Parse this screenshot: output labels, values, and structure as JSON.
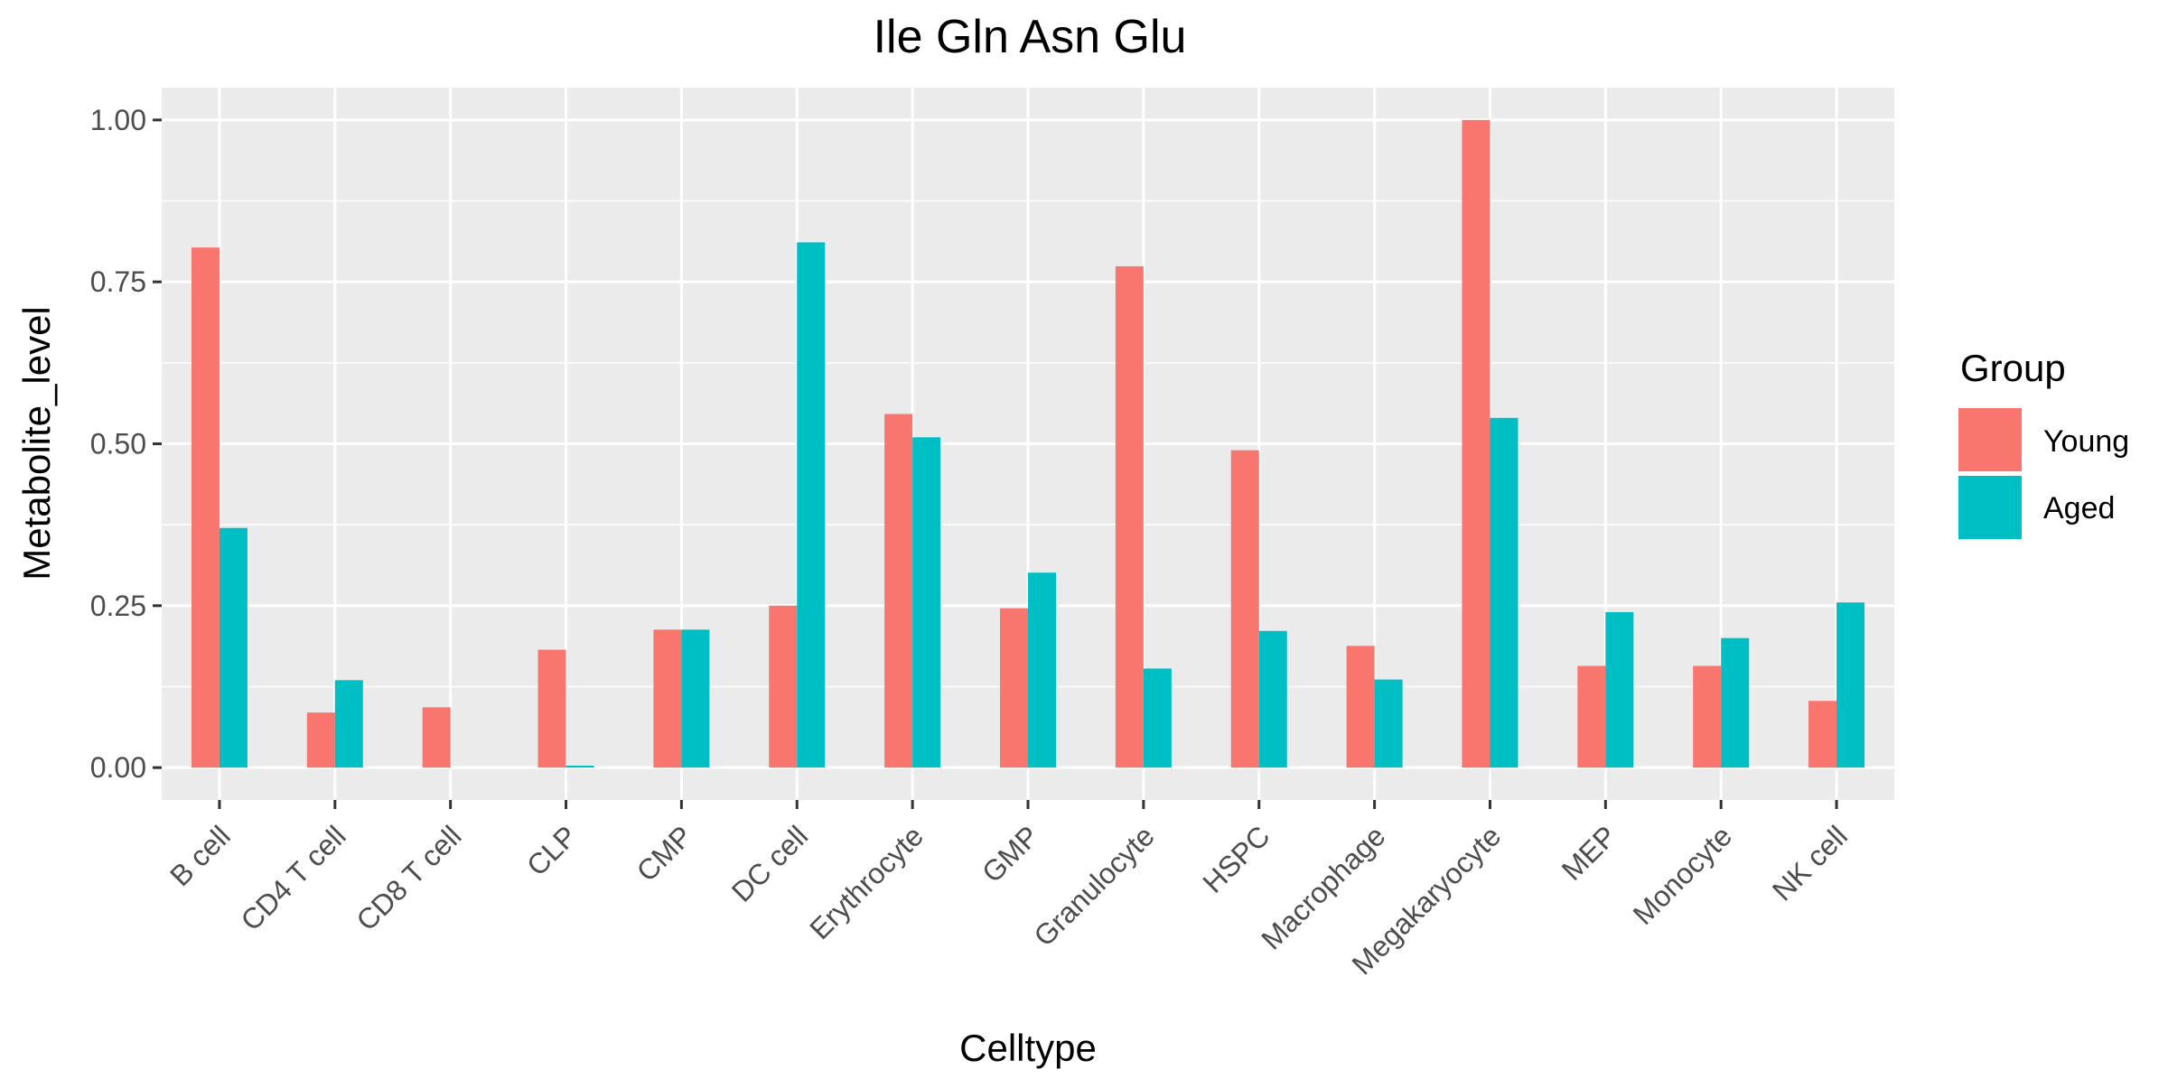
{
  "chart_data": {
    "type": "bar",
    "title": "Ile Gln Asn Glu",
    "xlabel": "Celltype",
    "ylabel": "Metabolite_level",
    "ylim": [
      -0.05,
      1.05
    ],
    "yticks": [
      0.0,
      0.25,
      0.5,
      0.75,
      1.0
    ],
    "ytick_labels": [
      "0.00",
      "0.25",
      "0.50",
      "0.75",
      "1.00"
    ],
    "grid": true,
    "legend": {
      "title": "Group",
      "position": "right"
    },
    "categories": [
      "B cell",
      "CD4 T cell",
      "CD8 T cell",
      "CLP",
      "CMP",
      "DC cell",
      "Erythrocyte",
      "GMP",
      "Granulocyte",
      "HSPC",
      "Macrophage",
      "Megakaryocyte",
      "MEP",
      "Monocyte",
      "NK cell"
    ],
    "series": [
      {
        "name": "Young",
        "color": "#F8766D",
        "values": [
          0.803,
          0.085,
          0.093,
          0.182,
          0.213,
          0.25,
          0.546,
          0.246,
          0.774,
          0.49,
          0.188,
          1.0,
          0.157,
          0.157,
          0.103
        ]
      },
      {
        "name": "Aged",
        "color": "#00BFC4",
        "values": [
          0.37,
          0.135,
          0.0,
          0.003,
          0.213,
          0.811,
          0.51,
          0.301,
          0.153,
          0.211,
          0.136,
          0.54,
          0.24,
          0.2,
          0.255
        ]
      }
    ],
    "colors": {
      "panel_background": "#EBEBEB",
      "grid_line": "#FFFFFF",
      "text_dark": "#000000",
      "text_tick": "#4D4D4D"
    }
  }
}
